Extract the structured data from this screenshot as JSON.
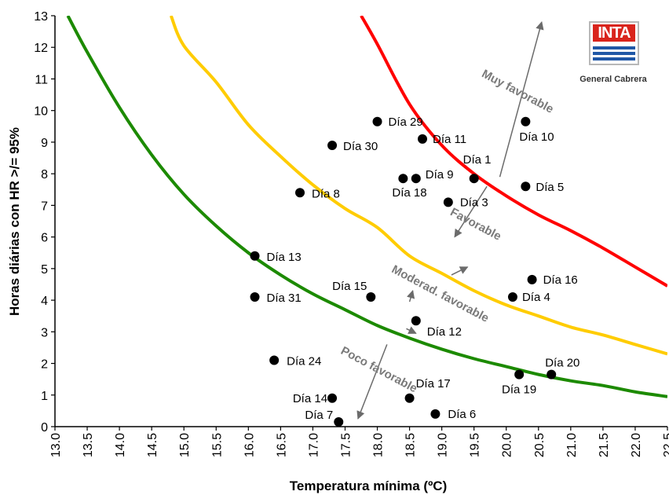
{
  "chart_data": {
    "type": "scatter",
    "xlabel": "Temperatura mínima (ºC)",
    "ylabel": "Horas diárias con HR >/= 95%",
    "xlim": [
      13.0,
      22.5
    ],
    "ylim": [
      0,
      13
    ],
    "x_ticks": [
      "13.0",
      "13.5",
      "14.0",
      "14.5",
      "15.0",
      "15.5",
      "16.0",
      "16.5",
      "17.0",
      "17.5",
      "18.0",
      "18.5",
      "19.0",
      "19.5",
      "20.0",
      "20.5",
      "21.0",
      "21.5",
      "22.0",
      "22.5"
    ],
    "y_ticks": [
      "0",
      "1",
      "2",
      "3",
      "4",
      "5",
      "6",
      "7",
      "8",
      "9",
      "10",
      "11",
      "12",
      "13"
    ],
    "grid": false,
    "points": [
      {
        "label": "Día 1",
        "x": 19.5,
        "y": 7.85
      },
      {
        "label": "Día 3",
        "x": 19.1,
        "y": 7.1
      },
      {
        "label": "Día 4",
        "x": 20.1,
        "y": 4.1
      },
      {
        "label": "Día 5",
        "x": 20.3,
        "y": 7.6
      },
      {
        "label": "Día 6",
        "x": 18.9,
        "y": 0.4
      },
      {
        "label": "Día 7",
        "x": 17.4,
        "y": 0.15
      },
      {
        "label": "Día 8",
        "x": 16.8,
        "y": 7.4
      },
      {
        "label": "Día 9",
        "x": 18.6,
        "y": 7.85
      },
      {
        "label": "Día 10",
        "x": 20.3,
        "y": 9.65
      },
      {
        "label": "Día 11",
        "x": 18.7,
        "y": 9.1
      },
      {
        "label": "Día 12",
        "x": 18.6,
        "y": 3.35
      },
      {
        "label": "Día 13",
        "x": 16.1,
        "y": 5.4
      },
      {
        "label": "Día 14",
        "x": 17.3,
        "y": 0.9
      },
      {
        "label": "Día 15",
        "x": 17.9,
        "y": 4.1
      },
      {
        "label": "Día 16",
        "x": 20.4,
        "y": 4.65
      },
      {
        "label": "Día 17",
        "x": 18.5,
        "y": 0.9
      },
      {
        "label": "Día 18",
        "x": 18.4,
        "y": 7.85
      },
      {
        "label": "Día 19",
        "x": 20.2,
        "y": 1.65
      },
      {
        "label": "Día 20",
        "x": 20.7,
        "y": 1.65
      },
      {
        "label": "Día 24",
        "x": 16.4,
        "y": 2.1
      },
      {
        "label": "Día 29",
        "x": 18.0,
        "y": 9.65
      },
      {
        "label": "Día 30",
        "x": 17.3,
        "y": 8.9
      },
      {
        "label": "Día 31",
        "x": 16.1,
        "y": 4.1
      }
    ],
    "curves": [
      {
        "color": "#ff0000",
        "points": [
          [
            17.75,
            13.0
          ],
          [
            18.0,
            12.1
          ],
          [
            18.5,
            10.2
          ],
          [
            19.0,
            8.9
          ],
          [
            19.5,
            8.0
          ],
          [
            20.0,
            7.3
          ],
          [
            20.5,
            6.7
          ],
          [
            21.0,
            6.2
          ],
          [
            21.5,
            5.65
          ],
          [
            22.0,
            5.05
          ],
          [
            22.5,
            4.45
          ]
        ]
      },
      {
        "color": "#ffcc00",
        "points": [
          [
            14.8,
            13.0
          ],
          [
            15.0,
            12.05
          ],
          [
            15.5,
            10.9
          ],
          [
            16.0,
            9.55
          ],
          [
            16.5,
            8.55
          ],
          [
            17.0,
            7.65
          ],
          [
            17.5,
            6.9
          ],
          [
            18.0,
            6.3
          ],
          [
            18.5,
            5.4
          ],
          [
            19.0,
            4.85
          ],
          [
            19.5,
            4.3
          ],
          [
            20.0,
            3.85
          ],
          [
            20.5,
            3.5
          ],
          [
            21.0,
            3.15
          ],
          [
            21.5,
            2.9
          ],
          [
            22.0,
            2.6
          ],
          [
            22.5,
            2.3
          ]
        ]
      },
      {
        "color": "#1c8a00",
        "points": [
          [
            13.2,
            13.0
          ],
          [
            13.5,
            11.85
          ],
          [
            14.0,
            10.1
          ],
          [
            14.5,
            8.6
          ],
          [
            15.0,
            7.35
          ],
          [
            15.5,
            6.35
          ],
          [
            16.0,
            5.5
          ],
          [
            16.5,
            4.8
          ],
          [
            17.0,
            4.2
          ],
          [
            17.5,
            3.7
          ],
          [
            18.0,
            3.2
          ],
          [
            18.5,
            2.8
          ],
          [
            19.0,
            2.45
          ],
          [
            19.5,
            2.15
          ],
          [
            20.0,
            1.9
          ],
          [
            20.5,
            1.65
          ],
          [
            21.0,
            1.45
          ],
          [
            21.5,
            1.3
          ],
          [
            22.0,
            1.1
          ],
          [
            22.5,
            0.95
          ]
        ]
      }
    ],
    "zone_labels": [
      {
        "text": "Muy favorable",
        "x": 20.15,
        "y": 10.5,
        "angle": 28
      },
      {
        "text": "Favorable",
        "x": 19.5,
        "y": 6.3,
        "angle": 28
      },
      {
        "text": "Moderad. favorable",
        "x": 18.95,
        "y": 4.1,
        "angle": 28
      },
      {
        "text": "Poco favorable",
        "x": 18.0,
        "y": 1.7,
        "angle": 28
      }
    ],
    "arrows": [
      {
        "from": [
          19.9,
          7.9
        ],
        "to": [
          20.55,
          12.8
        ]
      },
      {
        "from": [
          19.7,
          7.6
        ],
        "to": [
          19.2,
          6.0
        ]
      },
      {
        "from": [
          19.15,
          4.8
        ],
        "to": [
          19.4,
          5.05
        ]
      },
      {
        "from": [
          18.5,
          3.95
        ],
        "to": [
          18.55,
          4.3
        ]
      },
      {
        "from": [
          18.45,
          3.1
        ],
        "to": [
          18.6,
          2.95
        ]
      },
      {
        "from": [
          18.15,
          2.6
        ],
        "to": [
          17.7,
          0.25
        ]
      }
    ]
  },
  "logo": {
    "brand": "INTA",
    "subtitle": "General Cabrera"
  }
}
